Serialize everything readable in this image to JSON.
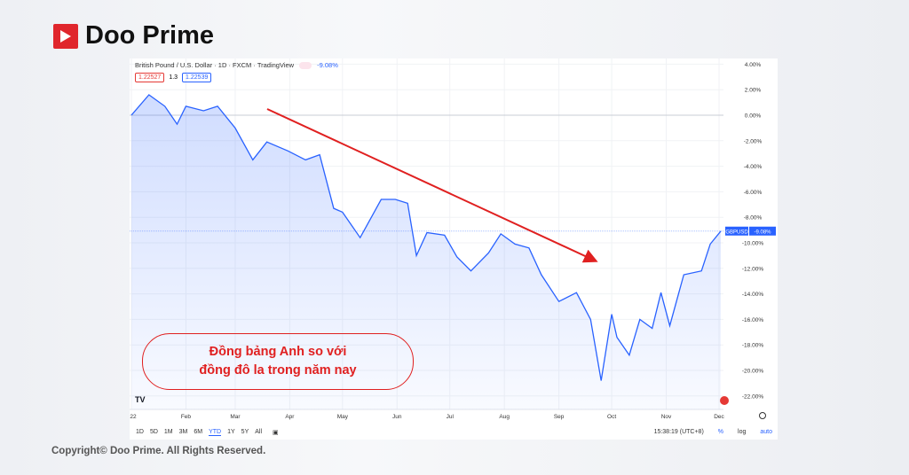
{
  "brand": {
    "name": "Doo Prime",
    "copyright": "Copyright© Doo Prime. All Rights Reserved."
  },
  "chart": {
    "title": "British Pound / U.S. Dollar · 1D · FXCM · TradingView",
    "change": "-9.08%",
    "bid": "1.22527",
    "spread": "1.3",
    "ask": "1.22539",
    "symbol_label": "GBPUSD",
    "last_label": "-9.08%",
    "note_line1": "Đồng bảng Anh so với",
    "note_line2": "đồng đô la trong năm nay",
    "ranges": [
      "1D",
      "5D",
      "1M",
      "3M",
      "6M",
      "YTD",
      "1Y",
      "5Y",
      "All"
    ],
    "active_range": "YTD",
    "time": "15:38:19 (UTC+8)",
    "pct": "%",
    "log": "log",
    "auto": "auto",
    "colors": {
      "line": "#2962ff",
      "arrow": "#e02020",
      "note": "#e02020"
    }
  },
  "chart_data": {
    "type": "area",
    "ylabel": "",
    "xlabel": "",
    "ylim": [
      -23,
      4.5
    ],
    "yticks": [
      "4.00%",
      "2.00%",
      "0.00%",
      "-2.00%",
      "-4.00%",
      "-6.00%",
      "-8.00%",
      "-10.00%",
      "-12.00%",
      "-14.00%",
      "-16.00%",
      "-18.00%",
      "-20.00%",
      "-22.00%"
    ],
    "xticks": [
      "22",
      "Feb",
      "Mar",
      "Apr",
      "May",
      "Jun",
      "Jul",
      "Aug",
      "Sep",
      "Oct",
      "Nov",
      "Dec"
    ],
    "grid": true,
    "x": [
      "2022-01-01",
      "2022-01-11",
      "2022-01-20",
      "2022-01-27",
      "2022-02-01",
      "2022-02-11",
      "2022-02-19",
      "2022-03-01",
      "2022-03-11",
      "2022-03-19",
      "2022-03-31",
      "2022-04-10",
      "2022-04-18",
      "2022-04-26",
      "2022-05-01",
      "2022-05-11",
      "2022-05-23",
      "2022-05-31",
      "2022-06-07",
      "2022-06-12",
      "2022-06-18",
      "2022-06-28",
      "2022-07-05",
      "2022-07-13",
      "2022-07-23",
      "2022-07-30",
      "2022-08-07",
      "2022-08-15",
      "2022-08-22",
      "2022-09-01",
      "2022-09-11",
      "2022-09-19",
      "2022-09-25",
      "2022-10-01",
      "2022-10-04",
      "2022-10-11",
      "2022-10-17",
      "2022-10-24",
      "2022-10-29",
      "2022-11-03",
      "2022-11-11",
      "2022-11-21",
      "2022-11-26",
      "2022-12-02"
    ],
    "values": [
      0,
      1.6,
      0.7,
      -0.7,
      0.7,
      0.35,
      0.7,
      -1.0,
      -3.5,
      -2.1,
      -2.8,
      -3.5,
      -3.1,
      -7.3,
      -7.6,
      -9.6,
      -6.6,
      -6.6,
      -6.9,
      -11.0,
      -9.2,
      -9.4,
      -11.1,
      -12.2,
      -10.8,
      -9.3,
      -10.1,
      -10.4,
      -12.5,
      -14.6,
      -13.9,
      -16.0,
      -20.8,
      -15.6,
      -17.4,
      -18.8,
      -16.0,
      -16.7,
      -13.9,
      -16.5,
      -12.5,
      -12.2,
      -10.1,
      -9.08
    ]
  }
}
